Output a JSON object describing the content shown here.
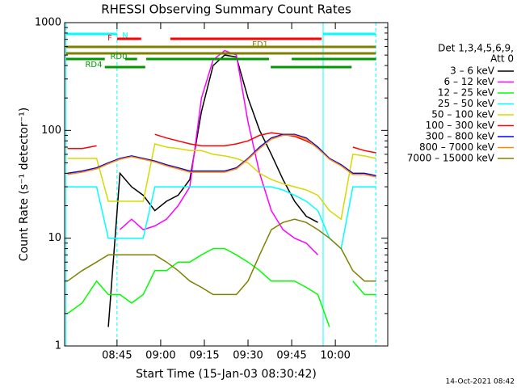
{
  "chart_data": {
    "type": "line",
    "title": "RHESSI Observing Summary Count Rates",
    "xlabel": "Start Time (15-Jan-03 08:30:42)",
    "ylabel": "Count Rate (s⁻¹ detector⁻¹)",
    "footer": "14-Oct-2021 08:42",
    "legend_title": [
      "Det 1,3,4,5,6,9,",
      "Att 0"
    ],
    "log_y": true,
    "xlim": [
      27,
      138
    ],
    "ylim": [
      1,
      1000
    ],
    "xticks": [
      {
        "value": 45,
        "label": "08:45"
      },
      {
        "value": 60,
        "label": "09:00"
      },
      {
        "value": 75,
        "label": "09:15"
      },
      {
        "value": 90,
        "label": "09:30"
      },
      {
        "value": 105,
        "label": "09:45"
      },
      {
        "value": 120,
        "label": "10:00"
      }
    ],
    "yticks": [
      1,
      10,
      100,
      1000
    ],
    "x": [
      28,
      33,
      38,
      42,
      46,
      50,
      54,
      58,
      62,
      66,
      70,
      74,
      78,
      82,
      86,
      90,
      94,
      98,
      102,
      106,
      110,
      114,
      118,
      122,
      126,
      130,
      134
    ],
    "series": [
      {
        "name": "3 – 6 keV",
        "color": "#000000",
        "values": [
          null,
          null,
          null,
          1.5,
          40,
          30,
          25,
          18,
          22,
          25,
          35,
          150,
          400,
          500,
          480,
          200,
          100,
          60,
          35,
          22,
          16,
          14,
          null,
          null,
          null,
          null,
          null
        ]
      },
      {
        "name": "6 – 12 keV",
        "color": "#ff00ff",
        "values": [
          null,
          null,
          null,
          null,
          12,
          15,
          12,
          13,
          15,
          20,
          30,
          200,
          450,
          550,
          500,
          120,
          40,
          18,
          12,
          10,
          9,
          7,
          null,
          null,
          null,
          null,
          null
        ]
      },
      {
        "name": "12 – 25 keV",
        "color": "#00ff00",
        "values": [
          2,
          2.5,
          4,
          3,
          3,
          2.5,
          3,
          5,
          5,
          6,
          6,
          7,
          8,
          8,
          7,
          6,
          5,
          4,
          4,
          4,
          3.5,
          3,
          1.5,
          null,
          4,
          3,
          3
        ]
      },
      {
        "name": "25 – 50 keV",
        "color": "#00ffff",
        "values": [
          30,
          30,
          30,
          10,
          10,
          10,
          10,
          30,
          30,
          30,
          30,
          30,
          30,
          30,
          30,
          30,
          30,
          30,
          28,
          25,
          22,
          18,
          10,
          8,
          30,
          30,
          30
        ]
      },
      {
        "name": "50 – 100 keV",
        "color": "#d8d800",
        "values": [
          55,
          55,
          55,
          22,
          22,
          22,
          22,
          75,
          70,
          68,
          65,
          65,
          60,
          58,
          55,
          50,
          40,
          35,
          32,
          30,
          28,
          25,
          18,
          15,
          60,
          58,
          55
        ]
      },
      {
        "name": "100 – 300 keV",
        "color": "#ff0000",
        "values": [
          68,
          68,
          72,
          null,
          null,
          null,
          null,
          92,
          85,
          80,
          75,
          72,
          72,
          72,
          75,
          80,
          90,
          95,
          92,
          88,
          80,
          70,
          null,
          null,
          70,
          65,
          62
        ]
      },
      {
        "name": "300 – 800 keV",
        "color": "#0000ff",
        "values": [
          40,
          42,
          45,
          50,
          55,
          58,
          55,
          52,
          48,
          45,
          42,
          42,
          42,
          42,
          45,
          55,
          70,
          85,
          92,
          92,
          85,
          70,
          55,
          48,
          40,
          40,
          38
        ]
      },
      {
        "name": "800 – 7000 keV",
        "color": "#ff8c00",
        "values": [
          39,
          41,
          44,
          49,
          54,
          57,
          54,
          51,
          47,
          44,
          41,
          41,
          41,
          41,
          44,
          54,
          68,
          83,
          90,
          90,
          83,
          68,
          54,
          47,
          39,
          39,
          37
        ]
      },
      {
        "name": "7000 – 15000 keV",
        "color": "#808000",
        "values": [
          4,
          5,
          6,
          7,
          7,
          7,
          7,
          7,
          6,
          5,
          4,
          3.5,
          3,
          3,
          3,
          4,
          7,
          12,
          14,
          15,
          14,
          12,
          10,
          8,
          5,
          4,
          4
        ]
      }
    ],
    "flags": [
      {
        "label": "N",
        "color": "#00ffff",
        "spans": [
          [
            27.5,
            45
          ],
          [
            115.8,
            133.9
          ]
        ]
      },
      {
        "label": "F",
        "color": "#ff0000",
        "spans": [
          [
            45,
            53.3
          ],
          [
            63.3,
            115.3
          ]
        ]
      },
      {
        "label": "FD1",
        "color": "#808000",
        "spans": [
          [
            27.5,
            133.9
          ]
        ]
      },
      {
        "label": "RD0",
        "color": "#009900",
        "spans": [
          [
            27.5,
            40.8
          ],
          [
            47.8,
            51.9
          ],
          [
            55,
            97.2
          ],
          [
            105,
            134
          ]
        ]
      },
      {
        "label": "RD4",
        "color": "#009900",
        "spans": [
          [
            40.8,
            54.7
          ],
          [
            97.8,
            125.6
          ]
        ]
      }
    ],
    "vlines": [
      {
        "x": 27.5,
        "dash": false
      },
      {
        "x": 45,
        "dash": true
      },
      {
        "x": 115.8,
        "dash": false
      },
      {
        "x": 133.9,
        "dash": true
      }
    ],
    "vline_color": "#00ffff"
  }
}
